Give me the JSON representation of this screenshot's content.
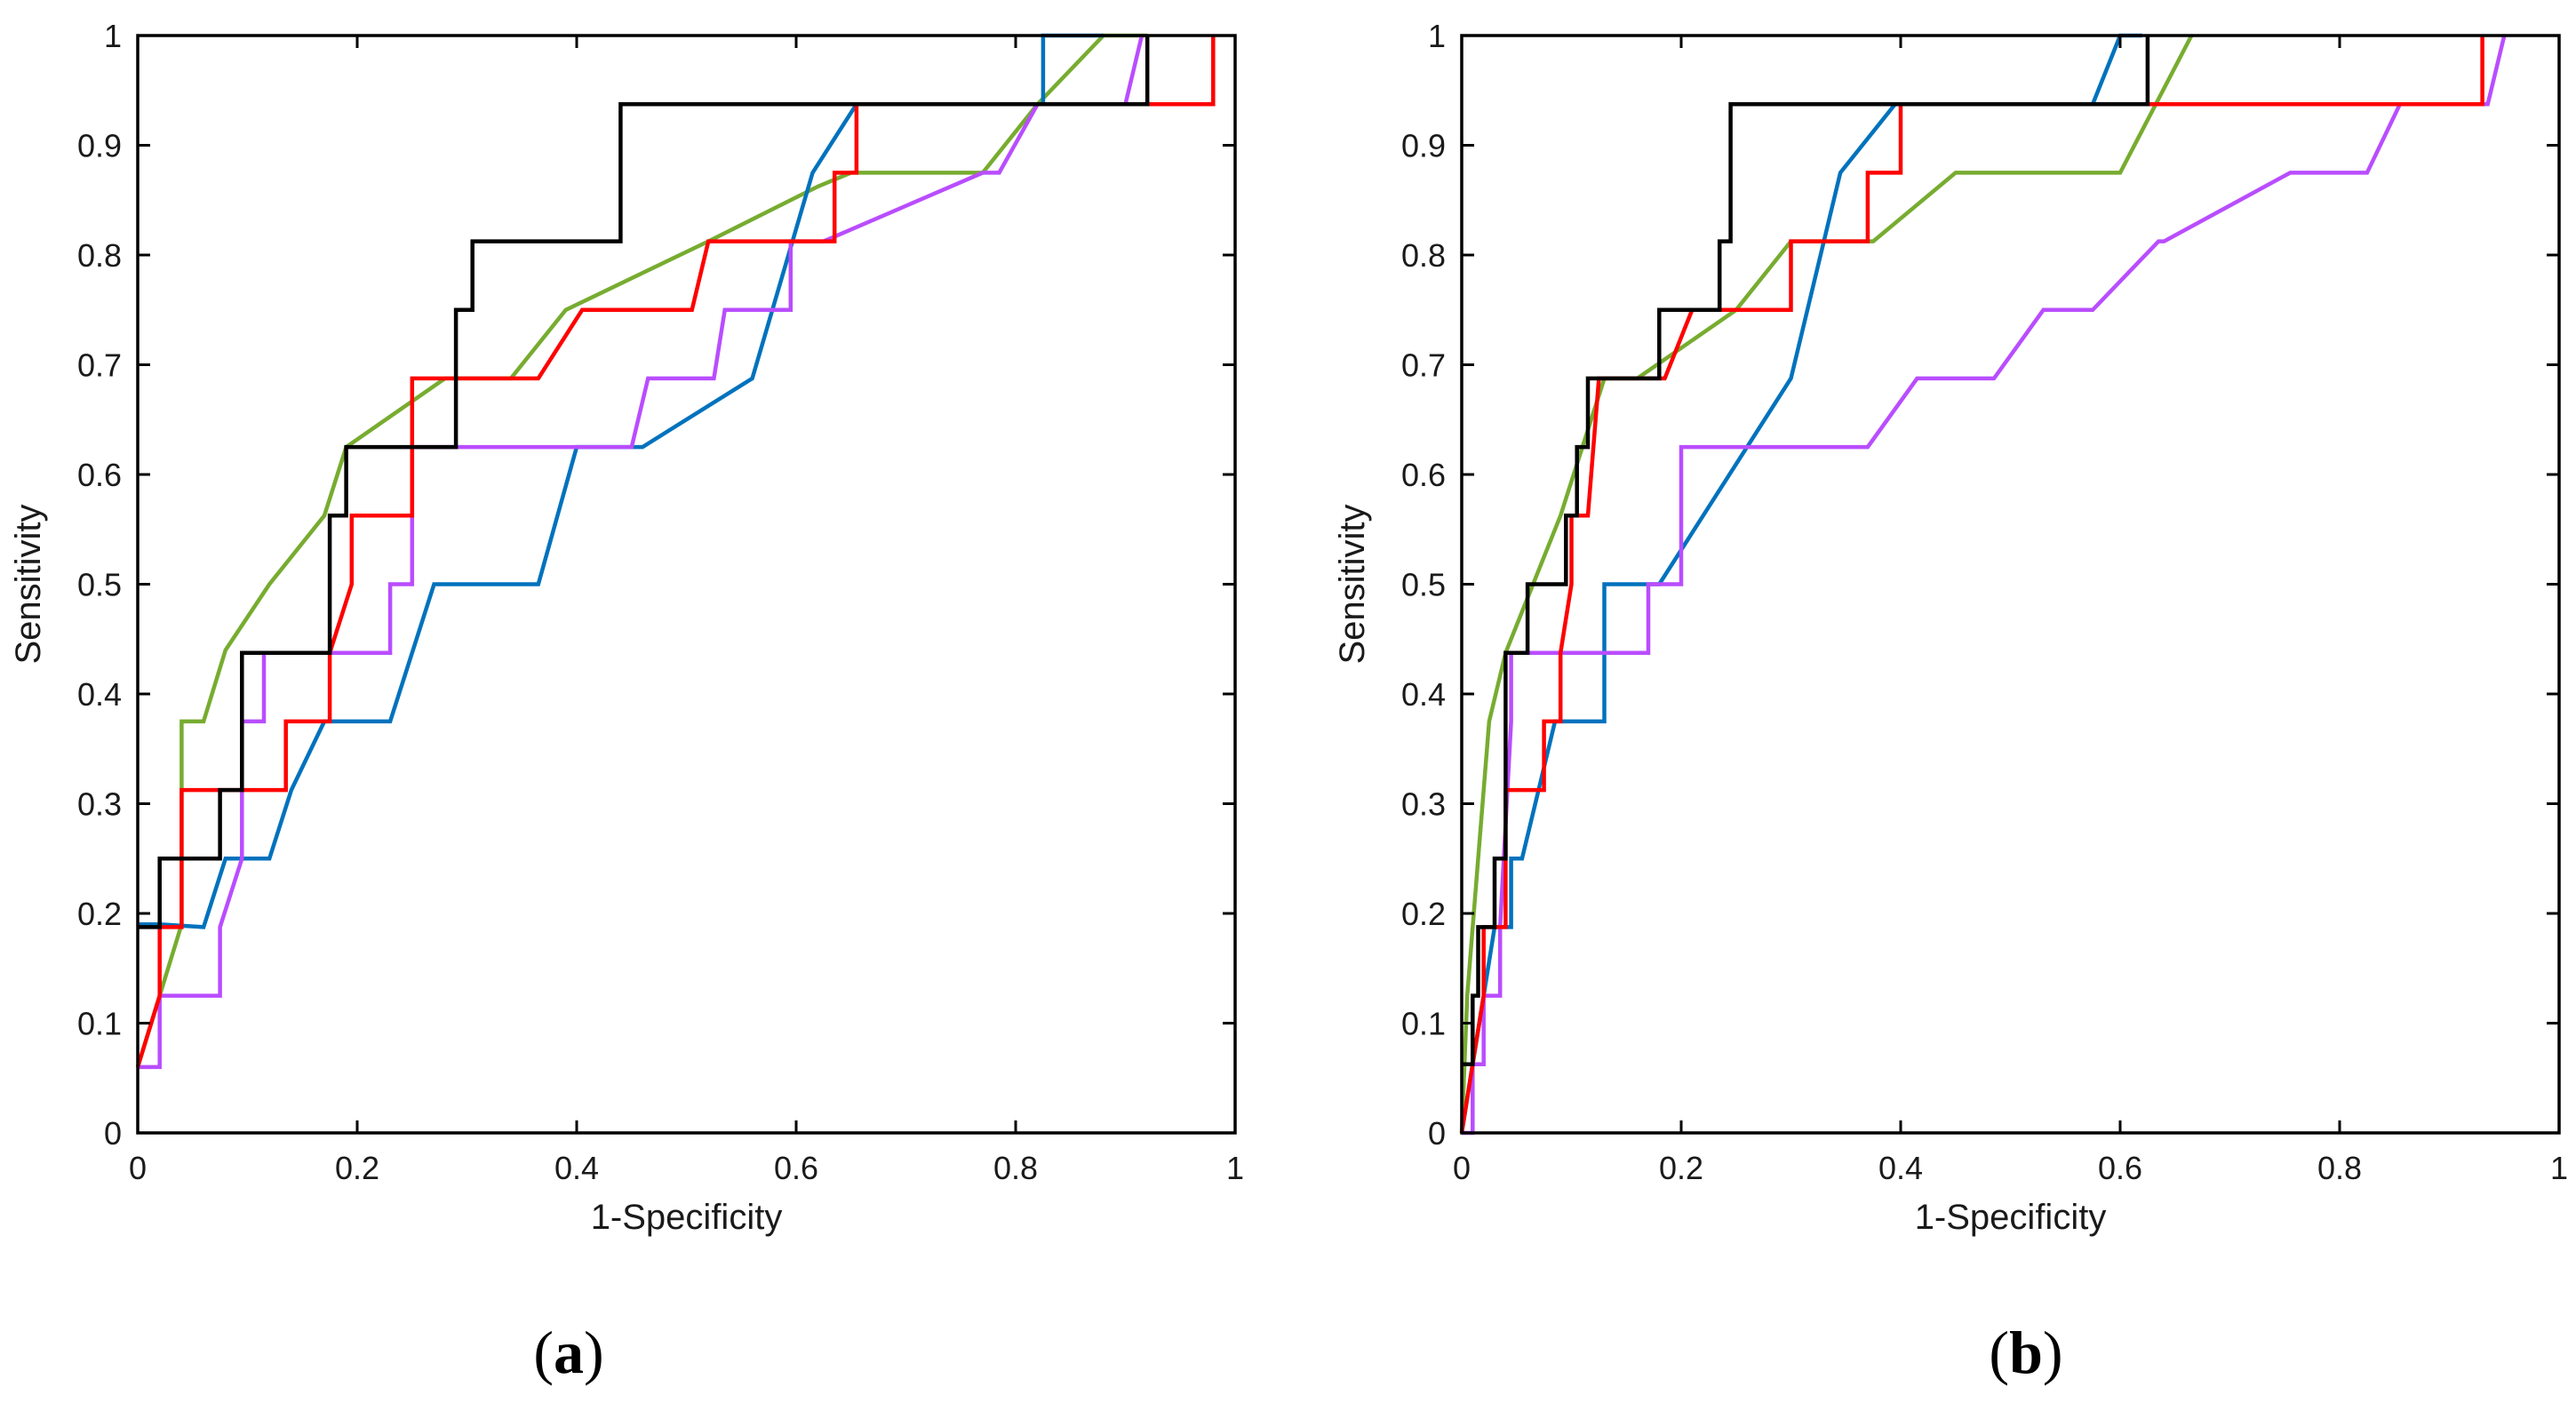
{
  "colors": {
    "blue": "#0072BD",
    "green": "#77AC30",
    "black": "#000000",
    "red": "#FF0000",
    "purple": "#B94DFF"
  },
  "chart_data": [
    {
      "type": "line",
      "panel_label": {
        "open": "(",
        "letter": "a",
        "close": ")"
      },
      "xlabel": "1-Specificity",
      "ylabel": "Sensitivity",
      "xlim": [
        0,
        1
      ],
      "ylim": [
        0,
        1
      ],
      "xticks": [
        "0",
        "0.2",
        "0.4",
        "0.6",
        "0.8",
        "1"
      ],
      "yticks": [
        "0",
        "0.1",
        "0.2",
        "0.3",
        "0.4",
        "0.5",
        "0.6",
        "0.7",
        "0.8",
        "0.9",
        "1"
      ],
      "series": [
        {
          "name": "green",
          "color": "#77AC30",
          "x": [
            0,
            0.04,
            0.04,
            0.06,
            0.08,
            0.12,
            0.17,
            0.19,
            0.28,
            0.34,
            0.39,
            0.52,
            0.62,
            0.65,
            0.77,
            0.82,
            0.88,
            0.92
          ],
          "y": [
            0.06,
            0.19,
            0.375,
            0.375,
            0.44,
            0.5,
            0.5625,
            0.625,
            0.6875,
            0.6875,
            0.75,
            0.8125,
            0.8625,
            0.875,
            0.875,
            0.9375,
            1,
            1
          ]
        },
        {
          "name": "blue",
          "color": "#0072BD",
          "x": [
            0,
            0.02,
            0.02,
            0.06,
            0.08,
            0.08,
            0.12,
            0.14,
            0.17,
            0.23,
            0.27,
            0.365,
            0.4,
            0.46,
            0.56,
            0.615,
            0.655,
            0.825,
            0.825,
            0.88,
            0.88
          ],
          "y": [
            0.19,
            0.19,
            0.19,
            0.1875,
            0.25,
            0.25,
            0.25,
            0.3125,
            0.375,
            0.375,
            0.5,
            0.5,
            0.625,
            0.625,
            0.6875,
            0.875,
            0.9375,
            0.9375,
            1,
            1,
            1
          ]
        },
        {
          "name": "purple",
          "color": "#B94DFF",
          "x": [
            0,
            0.02,
            0.02,
            0.075,
            0.075,
            0.095,
            0.095,
            0.115,
            0.115,
            0.23,
            0.23,
            0.25,
            0.25,
            0.27,
            0.45,
            0.465,
            0.525,
            0.535,
            0.595,
            0.595,
            0.625,
            0.77,
            0.785,
            0.82,
            0.9,
            0.915,
            0.915
          ],
          "y": [
            0.06,
            0.06,
            0.125,
            0.125,
            0.1875,
            0.25,
            0.375,
            0.375,
            0.4375,
            0.4375,
            0.5,
            0.5,
            0.625,
            0.625,
            0.625,
            0.6875,
            0.6875,
            0.75,
            0.75,
            0.8125,
            0.8125,
            0.875,
            0.875,
            0.9375,
            0.9375,
            1,
            1
          ]
        },
        {
          "name": "red",
          "color": "#FF0000",
          "x": [
            0,
            0.02,
            0.02,
            0.04,
            0.04,
            0.135,
            0.135,
            0.175,
            0.175,
            0.195,
            0.195,
            0.25,
            0.25,
            0.365,
            0.365,
            0.405,
            0.505,
            0.52,
            0.595,
            0.595,
            0.635,
            0.635,
            0.655,
            0.655,
            0.92,
            0.92,
            0.98,
            0.98
          ],
          "y": [
            0.06,
            0.125,
            0.1875,
            0.1875,
            0.3125,
            0.3125,
            0.375,
            0.375,
            0.4375,
            0.5,
            0.5625,
            0.5625,
            0.6875,
            0.6875,
            0.6875,
            0.75,
            0.75,
            0.8125,
            0.8125,
            0.8125,
            0.8125,
            0.875,
            0.875,
            0.9375,
            0.9375,
            0.9375,
            0.9375,
            1
          ]
        },
        {
          "name": "black",
          "color": "#000000",
          "x": [
            0,
            0.02,
            0.02,
            0.075,
            0.075,
            0.095,
            0.095,
            0.175,
            0.175,
            0.19,
            0.19,
            0.29,
            0.29,
            0.305,
            0.305,
            0.44,
            0.44,
            0.92,
            0.92
          ],
          "y": [
            0.1875,
            0.1875,
            0.25,
            0.25,
            0.3125,
            0.3125,
            0.4375,
            0.4375,
            0.5625,
            0.5625,
            0.625,
            0.625,
            0.75,
            0.75,
            0.8125,
            0.8125,
            0.9375,
            0.9375,
            1
          ]
        }
      ]
    },
    {
      "type": "line",
      "panel_label": {
        "open": "(",
        "letter": "b",
        "close": ")"
      },
      "xlabel": "1-Specificity",
      "ylabel": "Sensitivity",
      "xlim": [
        0,
        1
      ],
      "ylim": [
        0,
        1
      ],
      "xticks": [
        "0",
        "0.2",
        "0.4",
        "0.6",
        "0.8",
        "1"
      ],
      "yticks": [
        "0",
        "0.1",
        "0.2",
        "0.3",
        "0.4",
        "0.5",
        "0.6",
        "0.7",
        "0.8",
        "0.9",
        "1"
      ],
      "series": [
        {
          "name": "green",
          "color": "#77AC30",
          "x": [
            0,
            0.005,
            0.015,
            0.025,
            0.04,
            0.065,
            0.09,
            0.13,
            0.16,
            0.25,
            0.3,
            0.375,
            0.45,
            0.6,
            0.665
          ],
          "y": [
            0,
            0.125,
            0.25,
            0.375,
            0.4375,
            0.5,
            0.5625,
            0.6875,
            0.6875,
            0.75,
            0.8125,
            0.8125,
            0.875,
            0.875,
            1
          ]
        },
        {
          "name": "blue",
          "color": "#0072BD",
          "x": [
            0,
            0.01,
            0.02,
            0.03,
            0.045,
            0.045,
            0.055,
            0.07,
            0.085,
            0.13,
            0.13,
            0.18,
            0.18,
            0.22,
            0.3,
            0.345,
            0.395,
            0.575,
            0.6,
            0.62
          ],
          "y": [
            0,
            0.0625,
            0.125,
            0.1875,
            0.1875,
            0.25,
            0.25,
            0.3125,
            0.375,
            0.375,
            0.5,
            0.5,
            0.5,
            0.5625,
            0.6875,
            0.875,
            0.9375,
            0.9375,
            1,
            1
          ]
        },
        {
          "name": "purple",
          "color": "#B94DFF",
          "x": [
            0,
            0.01,
            0.01,
            0.02,
            0.02,
            0.035,
            0.035,
            0.045,
            0.045,
            0.17,
            0.17,
            0.2,
            0.2,
            0.37,
            0.415,
            0.485,
            0.53,
            0.575,
            0.635,
            0.64,
            0.755,
            0.825,
            0.855,
            0.935,
            0.935,
            0.95
          ],
          "y": [
            0,
            0,
            0.0625,
            0.0625,
            0.125,
            0.125,
            0.1875,
            0.375,
            0.4375,
            0.4375,
            0.5,
            0.5,
            0.625,
            0.625,
            0.6875,
            0.6875,
            0.75,
            0.75,
            0.8125,
            0.8125,
            0.875,
            0.875,
            0.9375,
            0.9375,
            0.9375,
            1
          ]
        },
        {
          "name": "red",
          "color": "#FF0000",
          "x": [
            0,
            0.01,
            0.02,
            0.02,
            0.04,
            0.04,
            0.075,
            0.075,
            0.09,
            0.09,
            0.1,
            0.1,
            0.115,
            0.115,
            0.125,
            0.125,
            0.15,
            0.155,
            0.185,
            0.21,
            0.3,
            0.3,
            0.37,
            0.37,
            0.4,
            0.4,
            0.93,
            0.93
          ],
          "y": [
            0,
            0.0625,
            0.125,
            0.1875,
            0.1875,
            0.3125,
            0.3125,
            0.375,
            0.375,
            0.4375,
            0.5,
            0.5625,
            0.5625,
            0.5625,
            0.6875,
            0.6875,
            0.6875,
            0.6875,
            0.6875,
            0.75,
            0.75,
            0.8125,
            0.8125,
            0.875,
            0.875,
            0.9375,
            0.9375,
            1
          ]
        },
        {
          "name": "black",
          "color": "#000000",
          "x": [
            0,
            0.01,
            0.01,
            0.015,
            0.015,
            0.03,
            0.03,
            0.04,
            0.04,
            0.06,
            0.06,
            0.095,
            0.095,
            0.105,
            0.105,
            0.115,
            0.115,
            0.14,
            0.14,
            0.18,
            0.18,
            0.235,
            0.235,
            0.245,
            0.245,
            0.625,
            0.625
          ],
          "y": [
            0.0625,
            0.0625,
            0.125,
            0.125,
            0.1875,
            0.1875,
            0.25,
            0.25,
            0.4375,
            0.4375,
            0.5,
            0.5,
            0.5625,
            0.5625,
            0.625,
            0.625,
            0.6875,
            0.6875,
            0.6875,
            0.6875,
            0.75,
            0.75,
            0.8125,
            0.8125,
            0.9375,
            0.9375,
            1
          ]
        }
      ]
    }
  ]
}
